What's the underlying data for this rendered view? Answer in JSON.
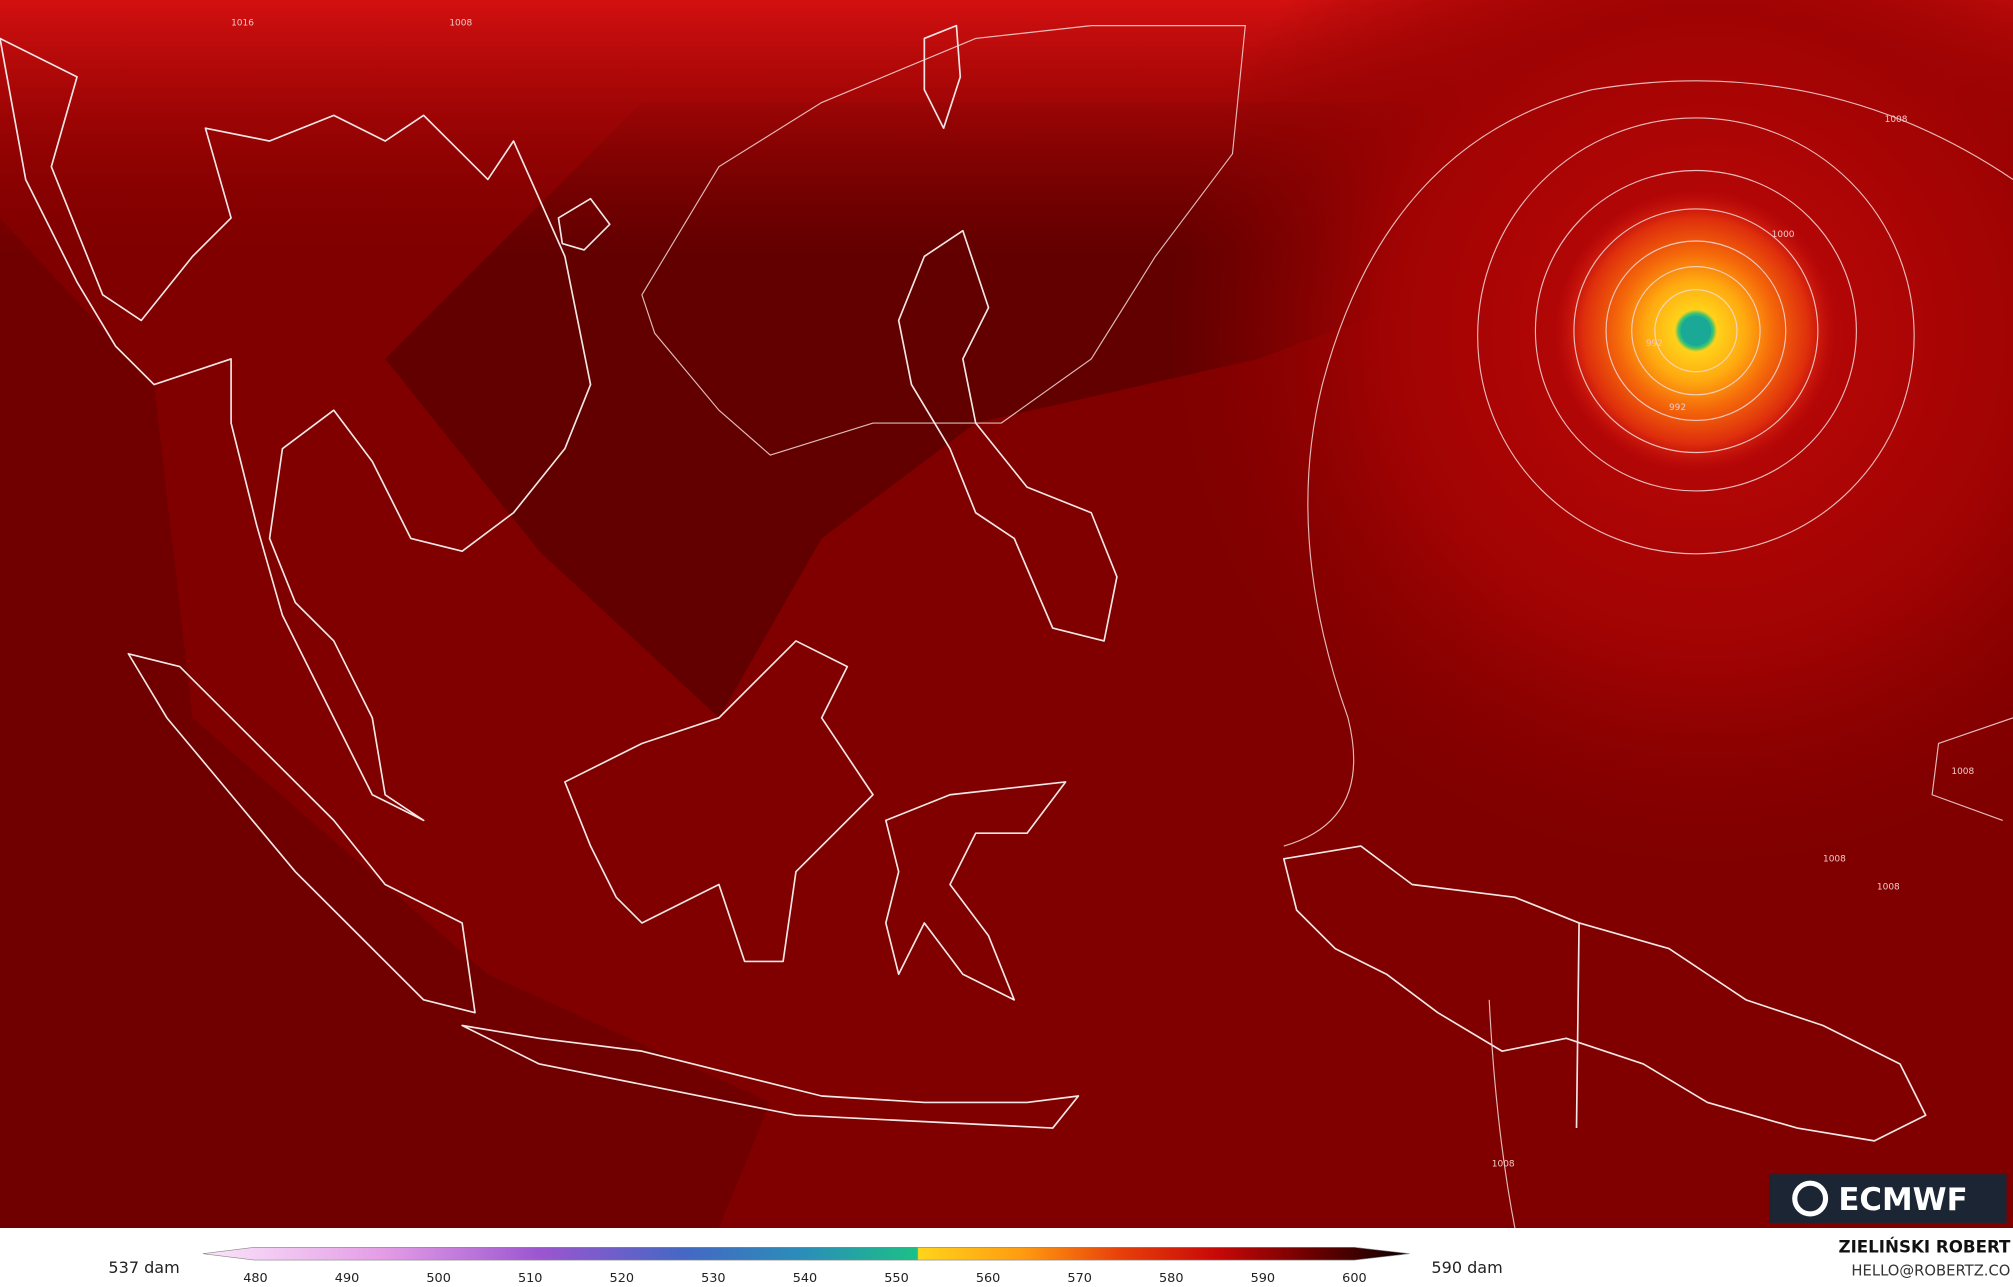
{
  "map": {
    "contour_labels": [
      "1016",
      "1008",
      "1008",
      "1000",
      "992",
      "1008",
      "1008",
      "1008",
      "1008",
      "992"
    ],
    "legend": {
      "min_label": "537 dam",
      "max_label": "590 dam",
      "ticks": [
        480,
        490,
        500,
        510,
        520,
        530,
        540,
        550,
        560,
        570,
        580,
        590,
        600
      ]
    },
    "logo": "ECMWF",
    "credit": {
      "name": "ZIELIŃSKI ROBERT",
      "contact": "HELLO@ROBERTZ.CO"
    }
  }
}
